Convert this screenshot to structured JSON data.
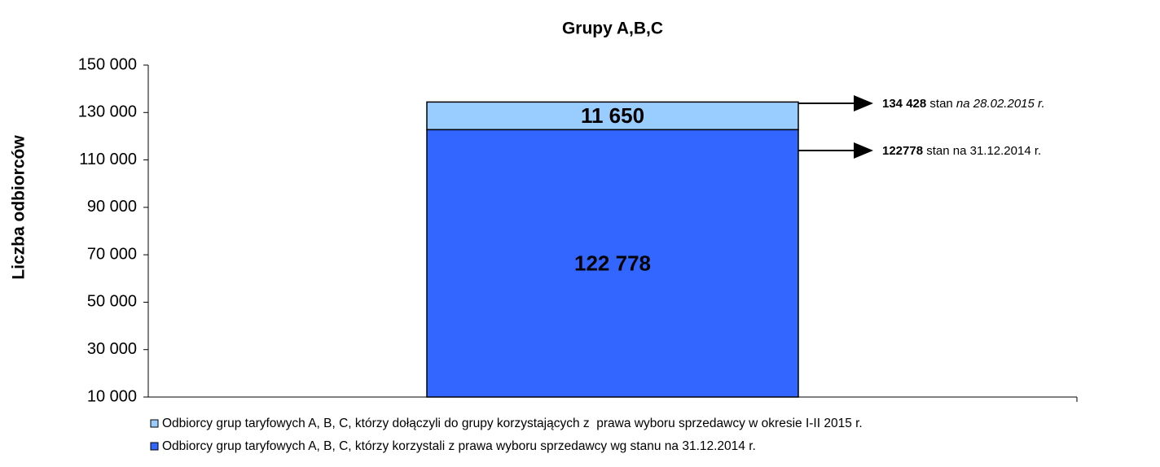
{
  "chart_data": {
    "type": "stacked_bar",
    "title": "Grupy A,B,C",
    "y_label": "Liczba odbiorców",
    "categories": [
      null
    ],
    "series": [
      {
        "name": "Odbiorcy grup taryfowych A, B, C, którzy korzystali z prawa wyboru sprzedawcy wg stanu na 31.12.2014 r.",
        "color": "#3366ff",
        "values": [
          122778
        ],
        "value_labels": [
          "122 778"
        ]
      },
      {
        "name": "Odbiorcy grup taryfowych A, B, C, którzy dołączyli do grupy korzystających z  prawa wyboru sprzedawcy w okresie I-II 2015 r.",
        "color": "#99ccff",
        "values": [
          11650
        ],
        "value_labels": [
          "11 650"
        ]
      }
    ],
    "ylim": [
      10000,
      150000
    ],
    "yticks": [
      {
        "value": 10000,
        "label": "10 000"
      },
      {
        "value": 30000,
        "label": "30 000"
      },
      {
        "value": 50000,
        "label": "50 000"
      },
      {
        "value": 70000,
        "label": "70 000"
      },
      {
        "value": 90000,
        "label": "90 000"
      },
      {
        "value": 110000,
        "label": "110 000"
      },
      {
        "value": 130000,
        "label": "130 000"
      },
      {
        "value": 150000,
        "label": "150 000"
      }
    ],
    "annotations": [
      {
        "bold": "134 428",
        "text": " stan ",
        "italic": "na 28.02.2015 r."
      },
      {
        "bold": "122778",
        "text": " stan na 31.12.2014 r."
      }
    ]
  }
}
